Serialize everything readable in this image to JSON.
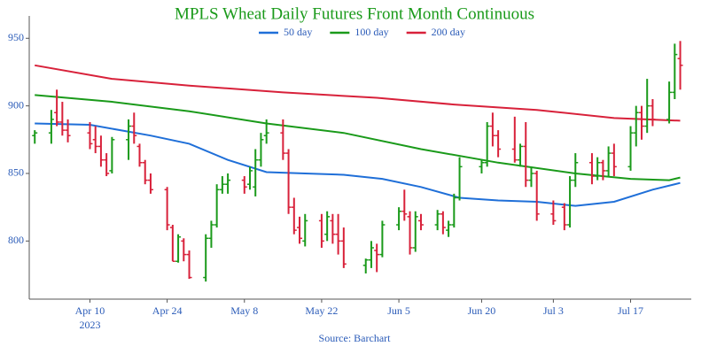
{
  "chart_data": {
    "type": "ohlc",
    "title": "MPLS Wheat Daily Futures Front Month Continuous",
    "source": "Source: Barchart",
    "x": [
      "2023-03-31",
      "2023-04-03",
      "2023-04-04",
      "2023-04-05",
      "2023-04-06",
      "2023-04-10",
      "2023-04-11",
      "2023-04-12",
      "2023-04-13",
      "2023-04-14",
      "2023-04-17",
      "2023-04-18",
      "2023-04-19",
      "2023-04-20",
      "2023-04-21",
      "2023-04-24",
      "2023-04-25",
      "2023-04-26",
      "2023-04-27",
      "2023-04-28",
      "2023-05-01",
      "2023-05-02",
      "2023-05-03",
      "2023-05-04",
      "2023-05-05",
      "2023-05-08",
      "2023-05-09",
      "2023-05-10",
      "2023-05-11",
      "2023-05-12",
      "2023-05-15",
      "2023-05-16",
      "2023-05-17",
      "2023-05-18",
      "2023-05-19",
      "2023-05-22",
      "2023-05-23",
      "2023-05-24",
      "2023-05-25",
      "2023-05-26",
      "2023-05-30",
      "2023-05-31",
      "2023-06-01",
      "2023-06-02",
      "2023-06-05",
      "2023-06-06",
      "2023-06-07",
      "2023-06-08",
      "2023-06-09",
      "2023-06-12",
      "2023-06-13",
      "2023-06-14",
      "2023-06-15",
      "2023-06-16",
      "2023-06-20",
      "2023-06-21",
      "2023-06-22",
      "2023-06-23",
      "2023-06-26",
      "2023-06-27",
      "2023-06-28",
      "2023-06-29",
      "2023-06-30",
      "2023-07-03",
      "2023-07-05",
      "2023-07-06",
      "2023-07-07",
      "2023-07-10",
      "2023-07-11",
      "2023-07-12",
      "2023-07-13",
      "2023-07-14",
      "2023-07-17",
      "2023-07-18",
      "2023-07-19",
      "2023-07-20",
      "2023-07-21",
      "2023-07-24",
      "2023-07-25",
      "2023-07-26"
    ],
    "open": [
      878,
      880,
      895,
      888,
      882,
      880,
      875,
      870,
      860,
      852,
      875,
      885,
      870,
      858,
      845,
      838,
      810,
      785,
      800,
      790,
      773,
      802,
      812,
      838,
      842,
      845,
      842,
      840,
      860,
      878,
      880,
      865,
      825,
      810,
      800,
      815,
      805,
      815,
      805,
      800,
      782,
      786,
      793,
      790,
      812,
      822,
      818,
      795,
      815,
      812,
      820,
      808,
      812,
      832,
      855,
      858,
      885,
      878,
      868,
      860,
      870,
      845,
      850,
      820,
      825,
      812,
      845,
      858,
      848,
      858,
      852,
      865,
      855,
      880,
      895,
      885,
      900,
      890,
      910,
      935
    ],
    "high": [
      882,
      897,
      912,
      903,
      890,
      888,
      885,
      878,
      865,
      877,
      890,
      895,
      872,
      860,
      850,
      840,
      812,
      805,
      802,
      793,
      805,
      815,
      842,
      848,
      850,
      848,
      855,
      868,
      880,
      890,
      890,
      868,
      832,
      818,
      820,
      820,
      822,
      820,
      820,
      810,
      787,
      800,
      798,
      815,
      825,
      838,
      822,
      822,
      820,
      823,
      822,
      815,
      835,
      862,
      860,
      888,
      895,
      882,
      892,
      872,
      888,
      855,
      852,
      830,
      828,
      848,
      865,
      865,
      862,
      860,
      870,
      872,
      885,
      900,
      900,
      920,
      905,
      918,
      946,
      948
    ],
    "low": [
      872,
      872,
      885,
      878,
      873,
      868,
      865,
      855,
      848,
      850,
      860,
      872,
      855,
      842,
      835,
      808,
      785,
      784,
      785,
      772,
      770,
      795,
      810,
      835,
      835,
      835,
      838,
      833,
      855,
      872,
      860,
      820,
      805,
      798,
      796,
      795,
      800,
      798,
      790,
      780,
      776,
      780,
      777,
      788,
      808,
      815,
      790,
      792,
      808,
      808,
      805,
      803,
      810,
      830,
      850,
      855,
      870,
      862,
      858,
      855,
      840,
      840,
      815,
      812,
      808,
      810,
      840,
      842,
      845,
      845,
      848,
      848,
      852,
      870,
      875,
      880,
      885,
      887,
      905,
      912
    ],
    "close": [
      880,
      890,
      888,
      882,
      878,
      872,
      870,
      860,
      850,
      875,
      885,
      878,
      858,
      845,
      838,
      812,
      785,
      803,
      790,
      773,
      802,
      812,
      838,
      842,
      845,
      840,
      852,
      860,
      875,
      880,
      865,
      825,
      808,
      802,
      815,
      800,
      818,
      805,
      800,
      783,
      786,
      795,
      790,
      812,
      822,
      820,
      795,
      818,
      812,
      820,
      810,
      812,
      832,
      855,
      858,
      885,
      878,
      868,
      860,
      870,
      845,
      850,
      820,
      815,
      812,
      845,
      858,
      848,
      858,
      852,
      865,
      855,
      880,
      895,
      885,
      900,
      890,
      910,
      938,
      930
    ],
    "up_color": "#1a9a1a",
    "down_color": "#d8213a",
    "moving_averages": [
      {
        "name": "50 day",
        "color": "#1f6fd8",
        "x": [
          "2023-03-31",
          "2023-04-10",
          "2023-04-21",
          "2023-04-28",
          "2023-05-05",
          "2023-05-12",
          "2023-05-19",
          "2023-05-26",
          "2023-06-02",
          "2023-06-09",
          "2023-06-16",
          "2023-06-23",
          "2023-06-30",
          "2023-07-07",
          "2023-07-14",
          "2023-07-21",
          "2023-07-26"
        ],
        "values": [
          887,
          886,
          878,
          872,
          860,
          851,
          850,
          849,
          846,
          840,
          832,
          830,
          829,
          826,
          829,
          838,
          843
        ]
      },
      {
        "name": "100 day",
        "color": "#1a9a1a",
        "x": [
          "2023-03-31",
          "2023-04-14",
          "2023-04-28",
          "2023-05-12",
          "2023-05-26",
          "2023-06-09",
          "2023-06-23",
          "2023-07-07",
          "2023-07-17",
          "2023-07-24",
          "2023-07-26"
        ],
        "values": [
          908,
          903,
          896,
          887,
          880,
          868,
          858,
          850,
          846,
          845,
          847
        ]
      },
      {
        "name": "200 day",
        "color": "#d8213a",
        "x": [
          "2023-03-31",
          "2023-04-14",
          "2023-04-28",
          "2023-05-15",
          "2023-06-01",
          "2023-06-15",
          "2023-06-30",
          "2023-07-14",
          "2023-07-26"
        ],
        "values": [
          930,
          920,
          915,
          910,
          906,
          901,
          897,
          891,
          889
        ]
      }
    ],
    "xlim": [
      "2023-03-30",
      "2023-07-28"
    ],
    "xticks": [
      {
        "value": "2023-04-10",
        "label": "Apr 10"
      },
      {
        "value": "2023-04-24",
        "label": "Apr 24"
      },
      {
        "value": "2023-05-08",
        "label": "May 8"
      },
      {
        "value": "2023-05-22",
        "label": "May 22"
      },
      {
        "value": "2023-06-05",
        "label": "Jun 5"
      },
      {
        "value": "2023-06-20",
        "label": "Jun 20"
      },
      {
        "value": "2023-07-03",
        "label": "Jul 3"
      },
      {
        "value": "2023-07-17",
        "label": "Jul 17"
      }
    ],
    "x_year_label": "2023",
    "ylim": [
      757,
      960
    ],
    "yticks": [
      800,
      850,
      900,
      950
    ]
  }
}
